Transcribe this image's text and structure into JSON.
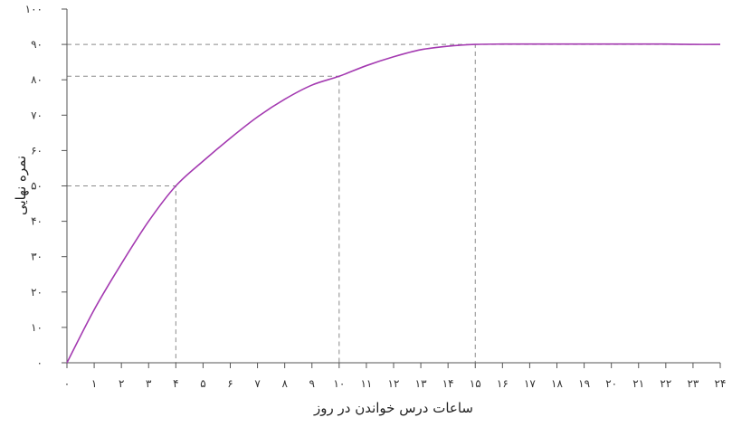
{
  "chart_data": {
    "type": "line",
    "xlabel": "ساعات درس خواندن در روز",
    "ylabel": "نمره نهایی",
    "xlim": [
      0,
      24
    ],
    "ylim": [
      0,
      100
    ],
    "x_ticks": [
      0,
      1,
      2,
      3,
      4,
      5,
      6,
      7,
      8,
      9,
      10,
      11,
      12,
      13,
      14,
      15,
      16,
      17,
      18,
      19,
      20,
      21,
      22,
      23,
      24
    ],
    "x_tick_labels": [
      "۰",
      "۱",
      "۲",
      "۳",
      "۴",
      "۵",
      "۶",
      "۷",
      "۸",
      "۹",
      "۱۰",
      "۱۱",
      "۱۲",
      "۱۳",
      "۱۴",
      "۱۵",
      "۱۶",
      "۱۷",
      "۱۸",
      "۱۹",
      "۲۰",
      "۲۱",
      "۲۲",
      "۲۳",
      "۲۴"
    ],
    "y_ticks": [
      0,
      10,
      20,
      30,
      40,
      50,
      60,
      70,
      80,
      90,
      100
    ],
    "y_tick_labels": [
      "۰",
      "۱۰",
      "۲۰",
      "۳۰",
      "۴۰",
      "۵۰",
      "۶۰",
      "۷۰",
      "۸۰",
      "۹۰",
      "۱۰۰"
    ],
    "grid": false,
    "series": [
      {
        "color": "#a43ab1",
        "x": [
          0,
          1,
          2,
          3,
          4,
          5,
          6,
          7,
          8,
          9,
          10,
          11,
          12,
          13,
          14,
          15,
          16,
          17,
          18,
          19,
          20,
          21,
          22,
          23,
          24
        ],
        "y": [
          0,
          15,
          28,
          40,
          50,
          57,
          63.5,
          69.5,
          74.5,
          78.5,
          81,
          84,
          86.5,
          88.5,
          89.5,
          90,
          90.1,
          90.1,
          90.1,
          90.1,
          90.1,
          90.1,
          90.1,
          90,
          90
        ]
      }
    ],
    "guides": [
      {
        "x": 4,
        "y": 50
      },
      {
        "x": 10,
        "y": 81
      },
      {
        "x": 15,
        "y": 90
      }
    ]
  }
}
